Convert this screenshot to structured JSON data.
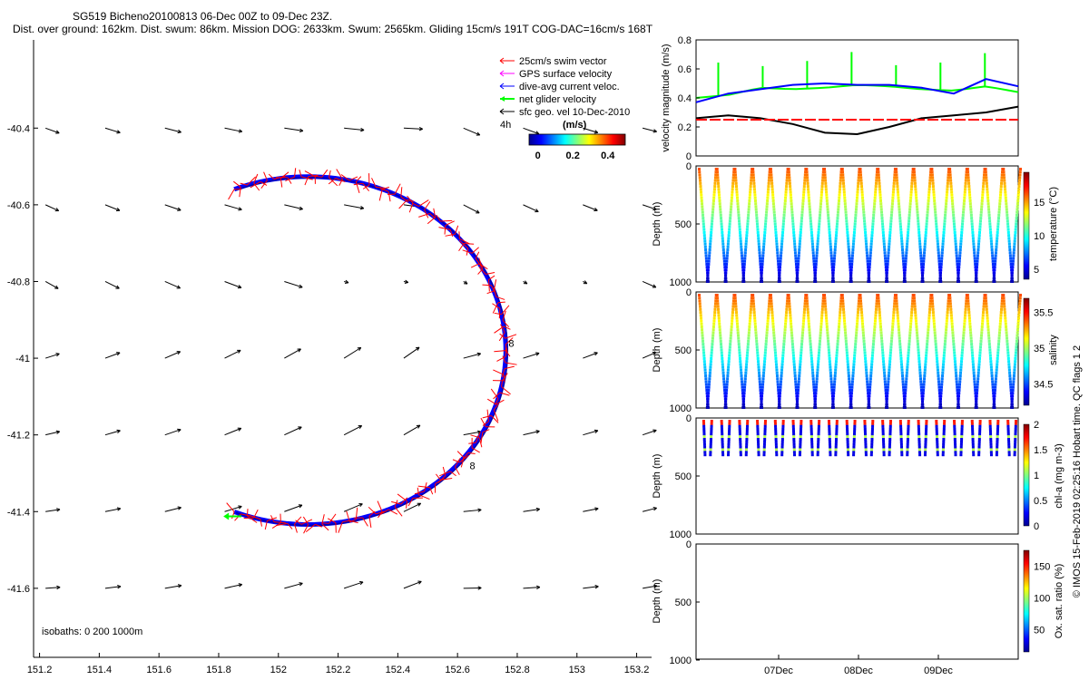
{
  "header": {
    "line1": "SG519 Bicheno20100813 06-Dec 00Z to 09-Dec 23Z.",
    "line2": "Dist. over ground: 162km. Dist. swum: 86km. Mission DOG: 2633km. Swum: 2565km. Gliding 15cm/s 191T COG-DAC=16cm/s 168T"
  },
  "credit": "© IMOS 15-Feb-2019 02:25:16 Hobart time. QC flags 1  2",
  "chart_data": [
    {
      "type": "scatter",
      "panel": "map",
      "x_ticks": [
        "151.2",
        "151.4",
        "151.6",
        "151.8",
        "152",
        "152.2",
        "152.4",
        "152.6",
        "152.8",
        "153",
        "153.2"
      ],
      "y_ticks": [
        "-40.4",
        "-40.6",
        "-40.8",
        "-41",
        "-41.2",
        "-41.4",
        "-41.6"
      ],
      "xlim": [
        151.18,
        153.25
      ],
      "ylim": [
        -41.78,
        -40.17
      ],
      "isobaths_label": "isobaths: 0   200   1000m",
      "legend": [
        {
          "label": "25cm/s swim vector",
          "color": "#ff0000"
        },
        {
          "label": "GPS surface velocity",
          "color": "#ff00ff"
        },
        {
          "label": "dive-avg current veloc.",
          "color": "#0000ff"
        },
        {
          "label": "net glider velocity",
          "color": "#00ff00"
        },
        {
          "label": "sfc geo. vel 10-Dec-2010",
          "color": "#000000"
        }
      ],
      "legend_scale_label": "4h",
      "colorbar": {
        "label": "(m/s)",
        "ticks": [
          "0",
          "0.2",
          "0.4"
        ],
        "range": [
          -0.05,
          0.5
        ]
      },
      "track": {
        "center": [
          152.1,
          -40.98
        ],
        "radius": 0.63,
        "start_deg": 112,
        "end_deg": -112
      },
      "markers": [
        {
          "label": "8",
          "lon": 152.78,
          "lat": -40.97
        },
        {
          "label": "8",
          "lon": 152.65,
          "lat": -41.29
        }
      ],
      "sfc_vectors": {
        "lons": [
          151.22,
          151.42,
          151.62,
          151.82,
          152.02,
          152.22,
          152.42,
          152.62,
          152.82,
          153.02,
          153.22
        ],
        "lats": [
          -40.4,
          -40.6,
          -40.8,
          -41.0,
          -41.2,
          -41.4,
          -41.6
        ],
        "u_base": 0.12,
        "v_base": 0.05
      }
    },
    {
      "type": "line",
      "panel": "velocity",
      "ylabel": "velocity magnitude (m/s)",
      "ylim": [
        0,
        0.8
      ],
      "y_ticks": [
        "0",
        "0.2",
        "0.4",
        "0.6",
        "0.8"
      ],
      "x": [
        0,
        0.1,
        0.2,
        0.3,
        0.4,
        0.5,
        0.6,
        0.7,
        0.8,
        0.9,
        1.0
      ],
      "series": [
        {
          "color": "#00ff00",
          "values": [
            0.4,
            0.42,
            0.47,
            0.46,
            0.47,
            0.49,
            0.48,
            0.46,
            0.45,
            0.48,
            0.44
          ]
        },
        {
          "color": "#0000ff",
          "values": [
            0.37,
            0.43,
            0.46,
            0.49,
            0.5,
            0.49,
            0.49,
            0.47,
            0.43,
            0.53,
            0.48
          ]
        },
        {
          "color": "#000000",
          "values": [
            0.26,
            0.28,
            0.26,
            0.22,
            0.16,
            0.15,
            0.2,
            0.26,
            0.28,
            0.3,
            0.34
          ]
        },
        {
          "color": "#ff0000",
          "dashed": true,
          "values": [
            0.25,
            0.25,
            0.25,
            0.25,
            0.25,
            0.25,
            0.25,
            0.25,
            0.25,
            0.25,
            0.25
          ]
        }
      ]
    },
    {
      "type": "scatter",
      "panel": "temperature",
      "ylabel": "Depth (m)",
      "ylim": [
        1000,
        0
      ],
      "y_ticks": [
        "0",
        "500",
        "1000"
      ],
      "colorbar_label": "temperature (°C)",
      "colorbar_ticks": [
        "5",
        "10",
        "15"
      ],
      "profiles": 18
    },
    {
      "type": "scatter",
      "panel": "salinity",
      "ylabel": "Depth (m)",
      "ylim": [
        1000,
        0
      ],
      "y_ticks": [
        "0",
        "500",
        "1000"
      ],
      "colorbar_label": "salinity",
      "colorbar_ticks": [
        "34.5",
        "35",
        "35.5"
      ],
      "profiles": 18
    },
    {
      "type": "scatter",
      "panel": "chlorophyll",
      "ylabel": "Depth (m)",
      "ylim": [
        1000,
        0
      ],
      "y_ticks": [
        "0",
        "500",
        "1000"
      ],
      "colorbar_label": "chl-a (mg m-3)",
      "colorbar_ticks": [
        "0",
        "0.5",
        "1",
        "1.5",
        "2"
      ],
      "profiles": 18
    },
    {
      "type": "scatter",
      "panel": "oxygen",
      "ylabel": "Depth (m)",
      "ylim": [
        1000,
        0
      ],
      "y_ticks": [
        "0",
        "500",
        "1000"
      ],
      "colorbar_label": "Ox. sat. ratio (%)",
      "colorbar_ticks": [
        "50",
        "100",
        "150"
      ],
      "x_ticks": [
        "07Dec",
        "08Dec",
        "09Dec"
      ]
    }
  ]
}
